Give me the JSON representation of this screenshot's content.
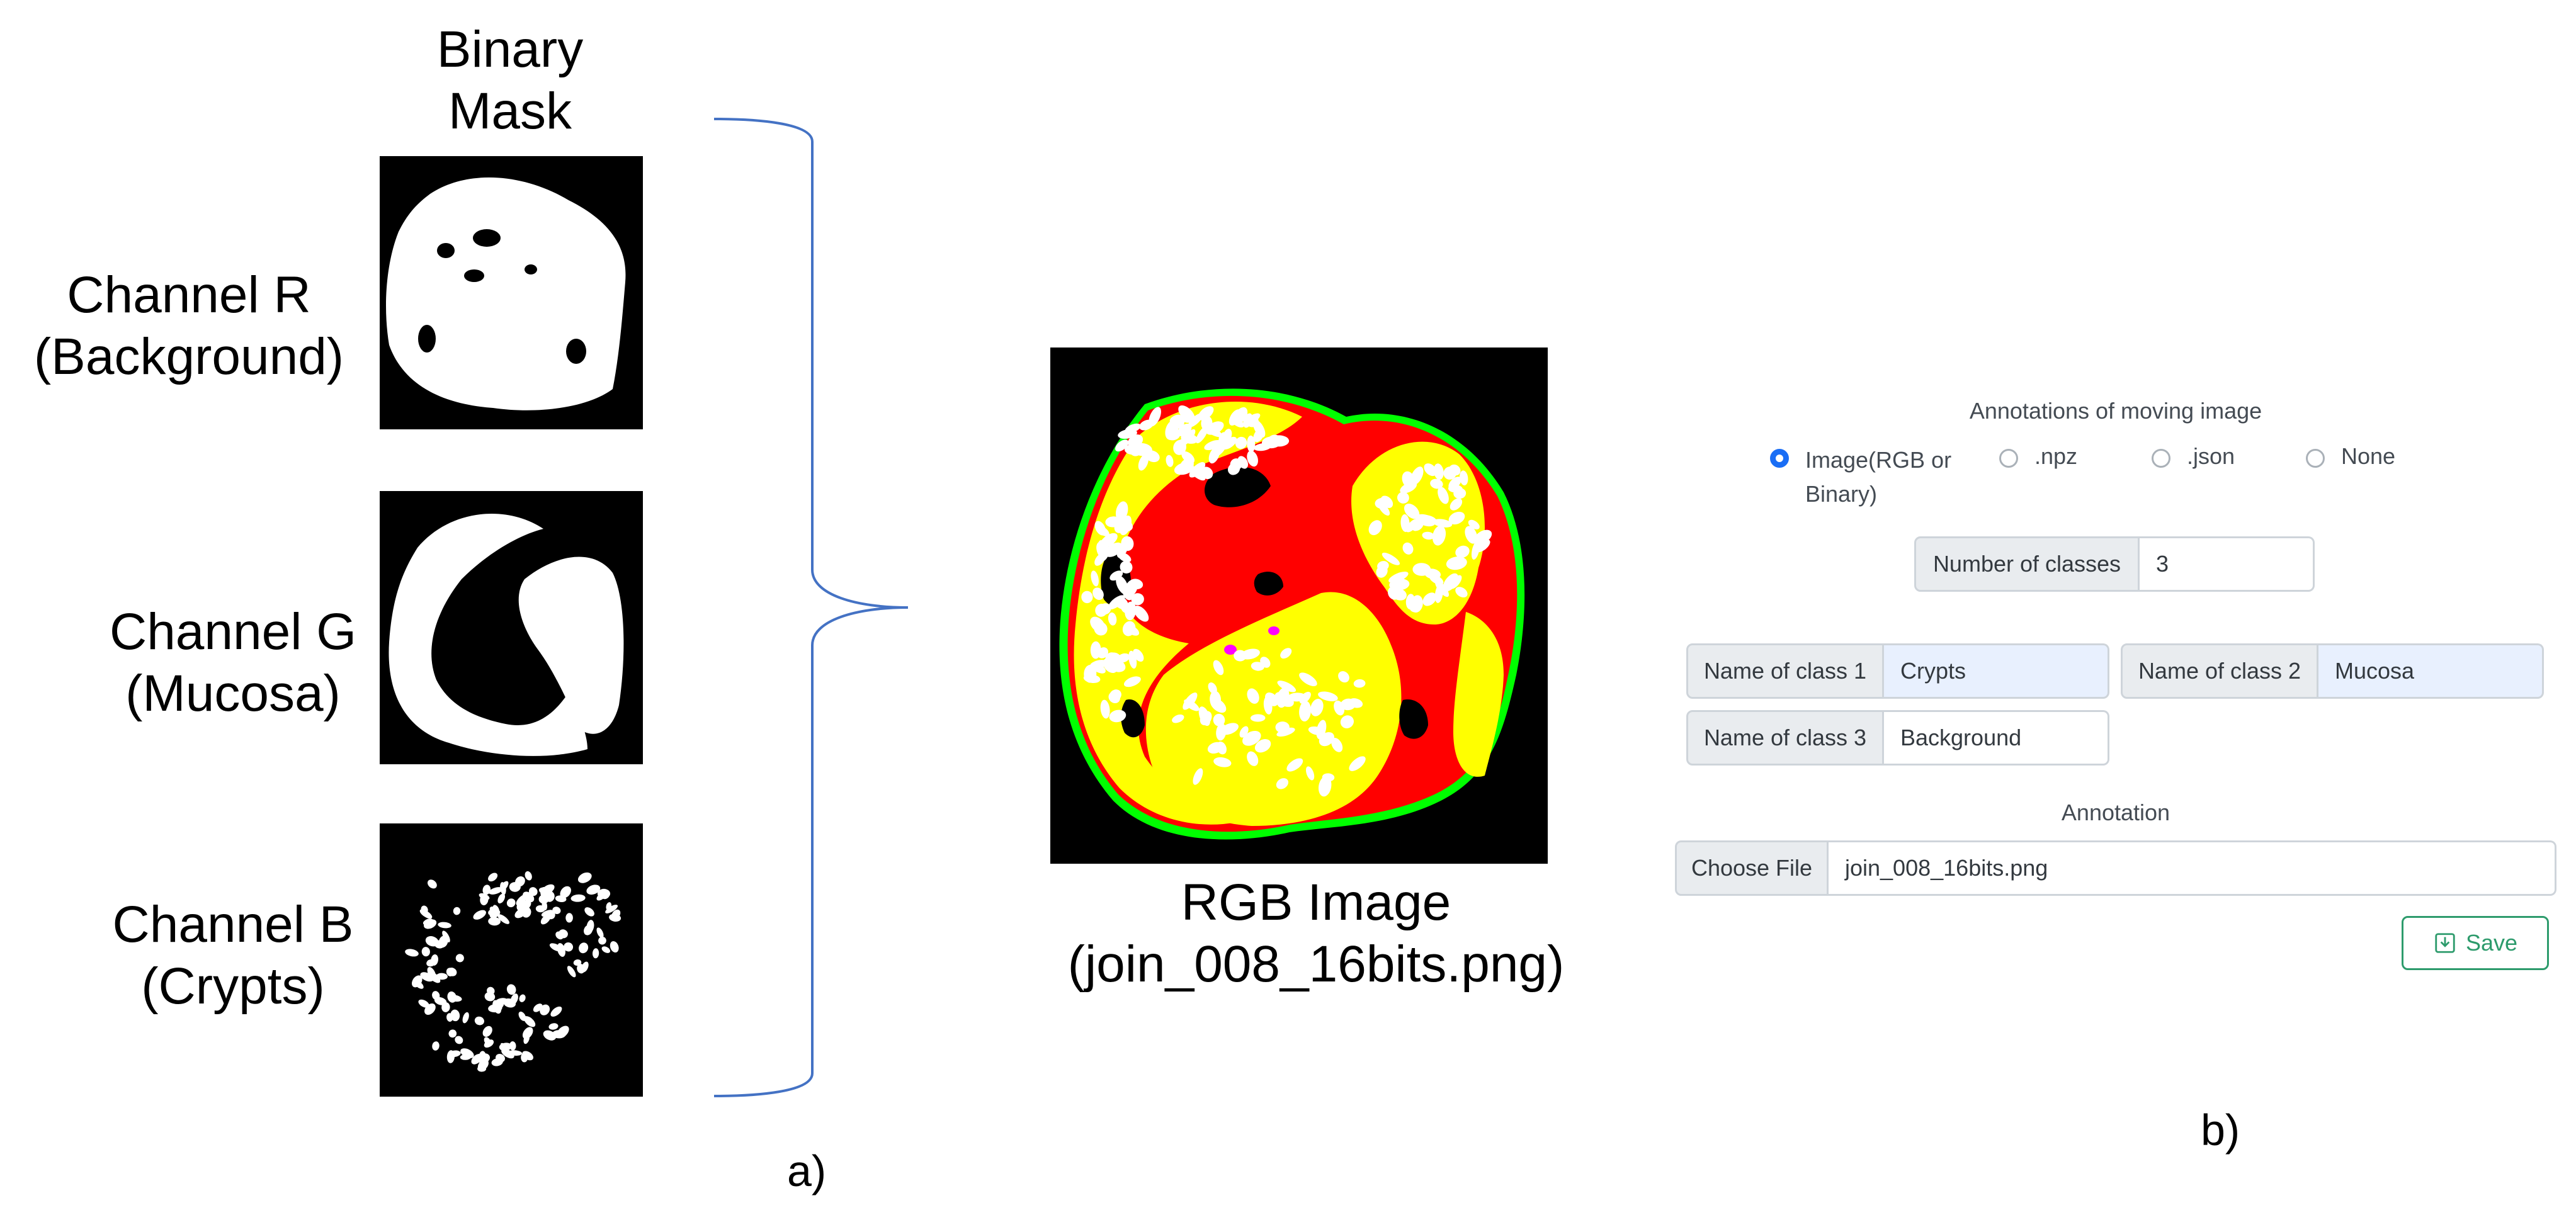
{
  "panel_a": {
    "column_title": "Binary\nMask",
    "channels": [
      {
        "line1": "Channel R",
        "line2": "(Background)"
      },
      {
        "line1": "Channel G",
        "line2": "(Mucosa)"
      },
      {
        "line1": "Channel B",
        "line2": "(Crypts)"
      }
    ],
    "rgb_caption_line1": "RGB Image",
    "rgb_caption_line2": "(join_008_16bits.png)",
    "letter": "a)"
  },
  "panel_b": {
    "annotations_heading": "Annotations of moving image",
    "radio_options": [
      {
        "label": "Image(RGB or\nBinary)",
        "checked": true
      },
      {
        "label": ".npz",
        "checked": false
      },
      {
        "label": ".json",
        "checked": false
      },
      {
        "label": "None",
        "checked": false
      }
    ],
    "num_classes_label": "Number of classes",
    "num_classes_value": "3",
    "class_fields": [
      {
        "label": "Name of class 1",
        "value": "Crypts"
      },
      {
        "label": "Name of class 2",
        "value": "Mucosa"
      },
      {
        "label": "Name of class 3",
        "value": "Background"
      }
    ],
    "annotation_heading": "Annotation",
    "choose_file_label": "Choose File",
    "file_name": "join_008_16bits.png",
    "save_label": "Save",
    "letter": "b)"
  },
  "colors": {
    "accent": "#1a6ef5",
    "save": "#2d9b6c",
    "brace": "#4472c4",
    "mask_red": "#ff0000",
    "mask_yellow": "#ffff00",
    "mask_green": "#00ff00",
    "mask_magenta": "#ff00ff"
  }
}
